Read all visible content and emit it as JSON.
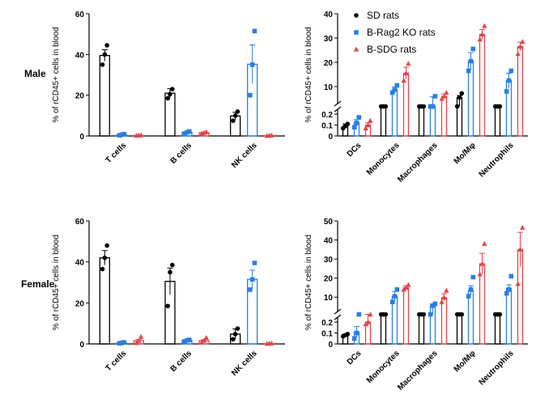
{
  "row_labels": [
    "Male",
    "Female"
  ],
  "colors": {
    "sd": "#000000",
    "rag2": "#2a7fe0",
    "sdg": "#e0474c"
  },
  "legend": {
    "entries": [
      {
        "name": "SD rats",
        "color": "#000000",
        "marker": "circle"
      },
      {
        "name": "B-Rag2 KO rats",
        "color": "#2a7fe0",
        "marker": "square"
      },
      {
        "name": "B-SDG rats",
        "color": "#e0474c",
        "marker": "triangle"
      }
    ]
  },
  "chart_data": [
    {
      "panel": "male-left",
      "type": "bar",
      "ylabel": "% of rCD45+ cells in blood",
      "ylim": [
        0,
        60
      ],
      "yticks": [
        0,
        20,
        40,
        60
      ],
      "categories": [
        "T cells",
        "B cells",
        "NK cells"
      ],
      "series": [
        {
          "name": "SD rats",
          "means": [
            39.5,
            21,
            9.8
          ],
          "errors": [
            2.8,
            2.2,
            1.8
          ],
          "points": [
            [
              35,
              40,
              44.5
            ],
            [
              18.5,
              20.5,
              23
            ],
            [
              7.5,
              10,
              12
            ]
          ]
        },
        {
          "name": "B-Rag2 KO rats",
          "means": [
            0.6,
            1.8,
            35.2
          ],
          "errors": [
            0.3,
            0.4,
            9.5
          ],
          "points": [
            [
              0.3,
              0.6,
              0.9
            ],
            [
              1.2,
              1.8,
              2.2
            ],
            [
              20,
              35,
              51.5
            ]
          ]
        },
        {
          "name": "B-SDG rats",
          "means": [
            0.3,
            1.6,
            0.2
          ],
          "errors": [
            0.1,
            0.3,
            0.1
          ],
          "points": [
            [
              0.2,
              0.3,
              0.4
            ],
            [
              1.2,
              1.6,
              2.0
            ],
            [
              0.1,
              0.2,
              0.3
            ]
          ]
        }
      ]
    },
    {
      "panel": "male-right",
      "type": "bar",
      "ylabel": "% of rCD45+ cells in blood",
      "y_axis_break": true,
      "ylim_lower": [
        0,
        0.2
      ],
      "yticks_lower": [
        0,
        0.1,
        0.2
      ],
      "ylim_upper": [
        5,
        40
      ],
      "yticks_upper": [
        10,
        20,
        30,
        40
      ],
      "categories": [
        "DCs",
        "Monocytes",
        "Macrophages",
        "Mo/Mφ",
        "Neutrophils"
      ],
      "series": [
        {
          "name": "SD rats",
          "means": [
            0.09,
            3.2,
            1.3,
            5.5,
            2.8
          ],
          "errors": [
            0.02,
            0.3,
            0.2,
            0.8,
            0.4
          ],
          "points": [
            [
              0.07,
              0.09,
              0.11
            ],
            [
              2.7,
              3.2,
              3.6
            ],
            [
              1.1,
              1.3,
              1.5
            ],
            [
              4.5,
              5.5,
              7.2
            ],
            [
              2.3,
              2.8,
              3.3
            ]
          ]
        },
        {
          "name": "B-Rag2 KO rats",
          "means": [
            0.12,
            8.7,
            4.6,
            20.5,
            12.5
          ],
          "errors": [
            0.03,
            1.2,
            1.2,
            3.5,
            3.0
          ],
          "points": [
            [
              0.08,
              0.12,
              0.17
            ],
            [
              7.5,
              8.7,
              10.5
            ],
            [
              3.5,
              4.5,
              6.0
            ],
            [
              16.5,
              20.5,
              25.5
            ],
            [
              8,
              12.5,
              16.5
            ]
          ]
        },
        {
          "name": "B-SDG rats",
          "means": [
            0.1,
            15.5,
            6.0,
            31.5,
            26.5
          ],
          "errors": [
            0.02,
            2.5,
            1.0,
            2.0,
            1.8
          ],
          "points": [
            [
              0.07,
              0.1,
              0.14
            ],
            [
              12.5,
              15.5,
              19.5
            ],
            [
              5.0,
              6.0,
              7.5
            ],
            [
              29.5,
              31.5,
              35
            ],
            [
              23.5,
              26.5,
              28.5
            ]
          ]
        }
      ]
    },
    {
      "panel": "female-left",
      "type": "bar",
      "ylabel": "% of rCD45+ cells in blood",
      "ylim": [
        0,
        60
      ],
      "yticks": [
        0,
        20,
        40,
        60
      ],
      "categories": [
        "T cells",
        "B cells",
        "NK cells"
      ],
      "series": [
        {
          "name": "SD rats",
          "means": [
            42,
            30.5,
            4.8
          ],
          "errors": [
            3.5,
            6.5,
            2.5
          ],
          "points": [
            [
              36.5,
              42,
              48
            ],
            [
              18.5,
              35,
              38.5
            ],
            [
              2.3,
              4.8,
              7.5
            ]
          ]
        },
        {
          "name": "B-Rag2 KO rats",
          "means": [
            0.5,
            1.7,
            31.5
          ],
          "errors": [
            0.2,
            0.3,
            4.5
          ],
          "points": [
            [
              0.3,
              0.5,
              0.8
            ],
            [
              1.3,
              1.7,
              2.0
            ],
            [
              26.5,
              31.5,
              39.5
            ]
          ]
        },
        {
          "name": "B-SDG rats",
          "means": [
            1.6,
            1.6,
            0.2
          ],
          "errors": [
            0.6,
            0.6,
            0.1
          ],
          "points": [
            [
              0.5,
              1.5,
              3.5
            ],
            [
              0.8,
              1.6,
              3.0
            ],
            [
              0.1,
              0.2,
              0.3
            ]
          ]
        }
      ]
    },
    {
      "panel": "female-right",
      "type": "bar",
      "ylabel": "% of rCD45+ cells in blood",
      "y_axis_break": true,
      "ylim_lower": [
        0,
        0.2
      ],
      "yticks_lower": [
        0,
        0.1,
        0.2
      ],
      "ylim_upper": [
        5,
        50
      ],
      "yticks_upper": [
        10,
        20,
        30,
        40,
        50
      ],
      "categories": [
        "DCs",
        "Monocytes",
        "Macrophages",
        "Mo/Mφ",
        "Neutrophils"
      ],
      "series": [
        {
          "name": "SD rats",
          "means": [
            0.08,
            3.2,
            1.3,
            3.5,
            2.5
          ],
          "errors": [
            0.01,
            0.5,
            0.2,
            0.6,
            0.5
          ],
          "points": [
            [
              0.07,
              0.08,
              0.09
            ],
            [
              2.5,
              3.2,
              3.8
            ],
            [
              1.1,
              1.3,
              1.5
            ],
            [
              2.8,
              3.5,
              4.5
            ],
            [
              1.9,
              2.5,
              3.1
            ]
          ]
        },
        {
          "name": "B-Rag2 KO rats",
          "means": [
            0.11,
            10.5,
            5.5,
            13.5,
            14.5
          ],
          "errors": [
            0.05,
            2.5,
            1.0,
            2.5,
            2.0
          ],
          "points": [
            [
              0.05,
              0.1,
              0.21
            ],
            [
              7.5,
              10.5,
              14
            ],
            [
              4.5,
              5.5,
              6.5
            ],
            [
              10.5,
              14,
              20.5
            ],
            [
              12,
              14,
              21
            ]
          ]
        },
        {
          "name": "B-SDG rats",
          "means": [
            0.2,
            15.0,
            9.8,
            27.5,
            35.0
          ],
          "errors": [
            0.03,
            1.0,
            2.0,
            5.5,
            9.0
          ],
          "points": [
            [
              0.18,
              0.2,
              0.23
            ],
            [
              14,
              15,
              16.5
            ],
            [
              7.5,
              9.8,
              13.5
            ],
            [
              22,
              27.5,
              38
            ],
            [
              17,
              35,
              46.5
            ]
          ]
        }
      ]
    }
  ]
}
